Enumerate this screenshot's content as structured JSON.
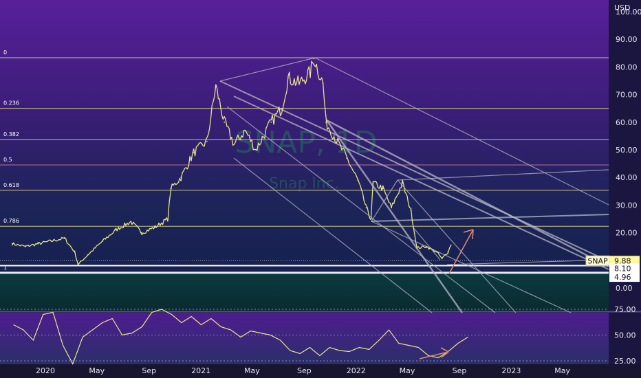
{
  "header": {
    "currency": "USD"
  },
  "watermark": {
    "symbol": "SNAP, 1D",
    "name": "Snap Inc."
  },
  "chart_data": [
    {
      "type": "line",
      "title": "SNAP, 1D",
      "subtitle": "Snap Inc.",
      "ylim": [
        0,
        100
      ],
      "y_ticks": [
        "100.00",
        "90.00",
        "80.00",
        "70.00",
        "60.00",
        "50.00",
        "40.00",
        "30.00",
        "20.00",
        "10.00",
        "0.00"
      ],
      "x_ticks": [
        "2020",
        "May",
        "Sep",
        "2021",
        "May",
        "Sep",
        "2022",
        "May",
        "Sep",
        "2023",
        "May"
      ],
      "series": [
        {
          "name": "SNAP",
          "color": "#e6e48a",
          "x": [
            "2019-10-15",
            "2019-11-15",
            "2019-12-15",
            "2020-01-15",
            "2020-02-15",
            "2020-03-10",
            "2020-03-18",
            "2020-04-10",
            "2020-05-15",
            "2020-06-15",
            "2020-07-20",
            "2020-08-15",
            "2020-09-15",
            "2020-10-15",
            "2020-10-22",
            "2020-11-15",
            "2020-12-15",
            "2021-01-15",
            "2021-02-05",
            "2021-02-25",
            "2021-03-20",
            "2021-04-15",
            "2021-05-10",
            "2021-06-15",
            "2021-07-10",
            "2021-07-25",
            "2021-08-20",
            "2021-09-15",
            "2021-09-24",
            "2021-10-15",
            "2021-10-22",
            "2021-11-10",
            "2021-12-10",
            "2022-01-05",
            "2022-01-25",
            "2022-02-05",
            "2022-02-10",
            "2022-03-05",
            "2022-03-25",
            "2022-04-20",
            "2022-05-10",
            "2022-05-24",
            "2022-06-15",
            "2022-07-10",
            "2022-07-22",
            "2022-08-05",
            "2022-08-12"
          ],
          "values": [
            16,
            15,
            16,
            17,
            18,
            13,
            8.5,
            12,
            17,
            21,
            24,
            20,
            22,
            25,
            36,
            40,
            49,
            53,
            73,
            60,
            52,
            57,
            50,
            60,
            65,
            76,
            74,
            78,
            83,
            74,
            60,
            55,
            47,
            39,
            29,
            25,
            38,
            36,
            29,
            38,
            28,
            14.5,
            15,
            13,
            10.6,
            13,
            15.5
          ]
        }
      ],
      "fibonacci": [
        {
          "label": "0",
          "value": 83.34,
          "color": "#ded586"
        },
        {
          "label": "0.236",
          "value": 65.02,
          "color": "#ded586"
        },
        {
          "label": "0.382",
          "value": 53.7,
          "color": "#ded586"
        },
        {
          "label": "0.5",
          "value": 44.53,
          "color": "#d07a9c"
        },
        {
          "label": "0.618",
          "value": 35.37,
          "color": "#ded586"
        },
        {
          "label": "0.786",
          "value": 22.33,
          "color": "#ded586"
        },
        {
          "label": "1",
          "value": 5.5,
          "color": "#ffffff"
        }
      ],
      "price_tags": [
        {
          "label": "SNAP",
          "value": "9.88",
          "y": 9.88
        },
        {
          "value": "8.10",
          "y": 8.1
        },
        {
          "value": "4.96",
          "y": 4.96
        }
      ],
      "grid": false
    },
    {
      "type": "line",
      "title": "",
      "ylim": [
        15,
        80
      ],
      "y_ticks": [
        "75.00",
        "50.00",
        "25.00"
      ],
      "series": [
        {
          "name": "",
          "color": "#e6e48a",
          "values": [
            60,
            55,
            45,
            70,
            72,
            40,
            22,
            48,
            55,
            62,
            66,
            50,
            52,
            58,
            72,
            75,
            70,
            62,
            68,
            60,
            66,
            58,
            55,
            48,
            54,
            52,
            50,
            45,
            35,
            32,
            38,
            30,
            38,
            35,
            34,
            38,
            36,
            45,
            55,
            42,
            40,
            38,
            30,
            28,
            34,
            42,
            48
          ]
        }
      ]
    }
  ]
}
